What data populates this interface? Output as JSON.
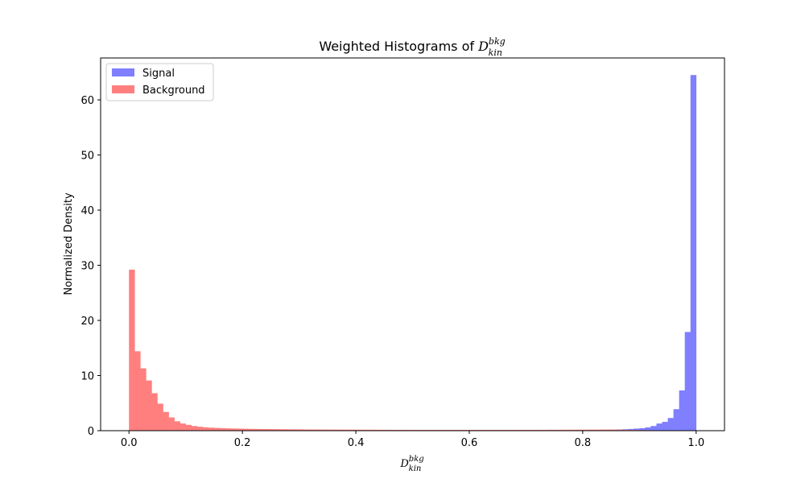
{
  "chart_data": {
    "type": "bar",
    "title": {
      "prefix": "Weighted Histograms of ",
      "symbol": "D",
      "superscript": "bkg",
      "subscript": "kin"
    },
    "xlabel": {
      "symbol": "D",
      "superscript": "bkg",
      "subscript": "kin"
    },
    "ylabel": "Normalized Density",
    "xlim": [
      -0.05,
      1.05
    ],
    "ylim": [
      0,
      67.6
    ],
    "xticks": [
      "0.0",
      "0.2",
      "0.4",
      "0.6",
      "0.8",
      "1.0"
    ],
    "yticks": [
      "0",
      "10",
      "20",
      "30",
      "40",
      "50",
      "60"
    ],
    "bin_width": 0.01,
    "legend_position": "upper-left",
    "grid": false,
    "series": [
      {
        "name": "Signal",
        "color": "#7f7fff",
        "bin_starts": [
          0.7,
          0.71,
          0.72,
          0.73,
          0.74,
          0.75,
          0.76,
          0.77,
          0.78,
          0.79,
          0.8,
          0.81,
          0.82,
          0.83,
          0.84,
          0.85,
          0.86,
          0.87,
          0.88,
          0.89,
          0.9,
          0.91,
          0.92,
          0.93,
          0.94,
          0.95,
          0.96,
          0.97,
          0.98,
          0.99
        ],
        "values": [
          0.03,
          0.03,
          0.03,
          0.04,
          0.04,
          0.05,
          0.05,
          0.06,
          0.07,
          0.08,
          0.09,
          0.1,
          0.12,
          0.14,
          0.16,
          0.19,
          0.22,
          0.26,
          0.31,
          0.38,
          0.45,
          0.6,
          0.85,
          1.3,
          1.6,
          2.3,
          3.9,
          7.3,
          17.9,
          64.5
        ]
      },
      {
        "name": "Background",
        "color": "#ff7f7f",
        "bin_starts": [
          0.0,
          0.01,
          0.02,
          0.03,
          0.04,
          0.05,
          0.06,
          0.07,
          0.08,
          0.09,
          0.1,
          0.11,
          0.12,
          0.13,
          0.14,
          0.15,
          0.16,
          0.17,
          0.18,
          0.19,
          0.2,
          0.21,
          0.22,
          0.23,
          0.24,
          0.25,
          0.26,
          0.27,
          0.28,
          0.29,
          0.3,
          0.31,
          0.32,
          0.33,
          0.34,
          0.35,
          0.36,
          0.37,
          0.38,
          0.39,
          0.4,
          0.41,
          0.42,
          0.43,
          0.44,
          0.45,
          0.46,
          0.47,
          0.48,
          0.49,
          0.5,
          0.51,
          0.52,
          0.53,
          0.54,
          0.55,
          0.56,
          0.57,
          0.58,
          0.59,
          0.6,
          0.61,
          0.62,
          0.63,
          0.64,
          0.65,
          0.66,
          0.67,
          0.68,
          0.69,
          0.7,
          0.71,
          0.72,
          0.73,
          0.74,
          0.75,
          0.76,
          0.77,
          0.78,
          0.79,
          0.8,
          0.81,
          0.82,
          0.83,
          0.84,
          0.85,
          0.86,
          0.87,
          0.88,
          0.89,
          0.9,
          0.91,
          0.92,
          0.93,
          0.94,
          0.95,
          0.96,
          0.97,
          0.98,
          0.99
        ],
        "values": [
          29.2,
          14.4,
          11.3,
          9.1,
          6.8,
          4.9,
          3.4,
          2.4,
          1.7,
          1.3,
          1.05,
          0.85,
          0.72,
          0.62,
          0.55,
          0.5,
          0.46,
          0.42,
          0.39,
          0.37,
          0.35,
          0.33,
          0.31,
          0.3,
          0.29,
          0.28,
          0.27,
          0.26,
          0.25,
          0.24,
          0.23,
          0.22,
          0.21,
          0.21,
          0.2,
          0.2,
          0.19,
          0.19,
          0.18,
          0.18,
          0.17,
          0.17,
          0.17,
          0.16,
          0.16,
          0.16,
          0.15,
          0.15,
          0.15,
          0.15,
          0.14,
          0.14,
          0.14,
          0.14,
          0.14,
          0.14,
          0.14,
          0.14,
          0.14,
          0.14,
          0.14,
          0.14,
          0.14,
          0.14,
          0.14,
          0.14,
          0.14,
          0.14,
          0.14,
          0.15,
          0.15,
          0.15,
          0.15,
          0.15,
          0.16,
          0.16,
          0.16,
          0.17,
          0.17,
          0.18,
          0.18,
          0.19,
          0.19,
          0.2,
          0.2,
          0.19,
          0.18,
          0.17,
          0.15,
          0.13,
          0.11,
          0.09,
          0.07,
          0.06,
          0.05,
          0.04,
          0.03,
          0.02,
          0.02,
          0.01
        ]
      }
    ]
  }
}
